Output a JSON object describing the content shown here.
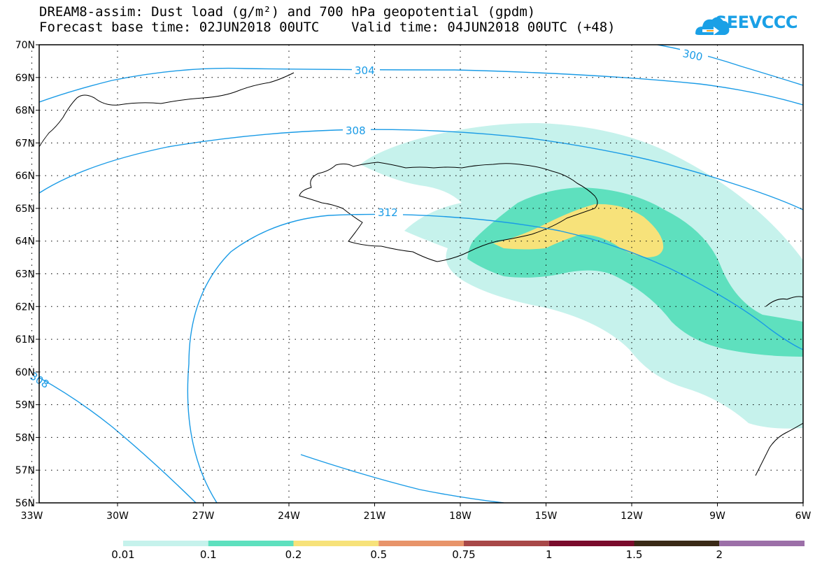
{
  "title": {
    "line1": "DREAM8-assim: Dust load (g/m²) and 700 hPa geopotential (gpdm)",
    "line2": "Forecast base time: 02JUN2018 00UTC    Valid time: 04JUN2018 00UTC (+48)"
  },
  "logo": {
    "text": "SEEVCCC",
    "icon": "cloud-arrow-icon",
    "color": "#1aa0e6"
  },
  "map": {
    "lat_labels": [
      "70N",
      "69N",
      "68N",
      "67N",
      "66N",
      "65N",
      "64N",
      "63N",
      "62N",
      "61N",
      "60N",
      "59N",
      "58N",
      "57N",
      "56N"
    ],
    "lon_labels": [
      "33W",
      "30W",
      "27W",
      "24W",
      "21W",
      "18W",
      "15W",
      "12W",
      "9W",
      "6W"
    ],
    "contour_labels": [
      "304",
      "308",
      "312",
      "300",
      "308"
    ],
    "contour_color": "#1a9be6",
    "coast_color": "#000000"
  },
  "colorbar": {
    "labels": [
      "0.01",
      "0.1",
      "0.2",
      "0.5",
      "0.75",
      "1",
      "1.5",
      "2"
    ],
    "colors": [
      "#c6f2ec",
      "#5ee0be",
      "#f7e27a",
      "#e8946a",
      "#a84848",
      "#7a0c2c",
      "#3a2a16",
      "#9c6fa8"
    ]
  }
}
